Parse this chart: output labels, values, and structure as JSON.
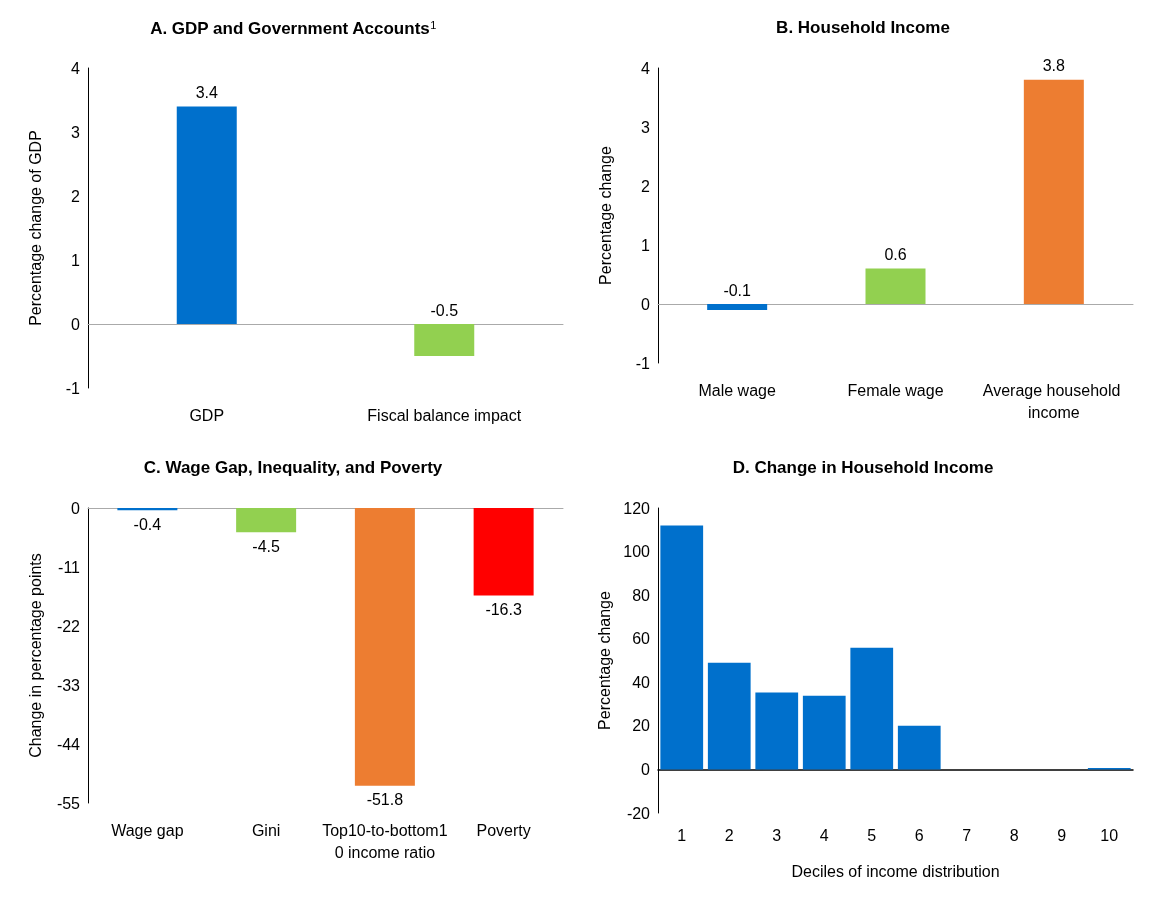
{
  "chart_data": [
    {
      "type": "bar",
      "title": "A. GDP and Government Accounts$^{1}$",
      "ylabel": "Percentage change of GDP",
      "categories": [
        "GDP",
        "Fiscal balance impact"
      ],
      "colors": [
        "#0070cc",
        "#92d050"
      ],
      "values": [
        3.4,
        -0.5
      ],
      "ylim": [
        -1,
        4
      ],
      "yticks": [
        -1,
        0,
        1,
        2,
        3,
        4
      ],
      "data_labels": true
    },
    {
      "type": "bar",
      "title": "B. Household Income",
      "ylabel": "Percentage change",
      "categories": [
        "Male wage",
        "Female wage",
        "Average household income"
      ],
      "colors": [
        "#0070cc",
        "#92d050",
        "#ed7d31"
      ],
      "values": [
        -0.1,
        0.6,
        3.8
      ],
      "ylim": [
        -1,
        4
      ],
      "yticks": [
        -1,
        0,
        1,
        2,
        3,
        4
      ],
      "data_labels": true
    },
    {
      "type": "bar",
      "title": "C. Wage Gap, Inequality, and Poverty",
      "ylabel": "Change in percentage points",
      "categories": [
        "Wage gap",
        "Gini",
        "Top10-to-bottom10 income ratio",
        "Poverty"
      ],
      "colors": [
        "#0070cc",
        "#92d050",
        "#ed7d31",
        "#ff0000"
      ],
      "values": [
        -0.4,
        -4.5,
        -51.8,
        -16.3
      ],
      "ylim": [
        -55,
        0
      ],
      "yticks": [
        -55,
        -44,
        -33,
        -22,
        -11,
        0
      ],
      "data_labels": true
    },
    {
      "type": "bar",
      "title": "D. Change in Household Income",
      "xlabel": "Deciles of income distribution",
      "ylabel": "Percentage change",
      "categories": [
        "1",
        "2",
        "3",
        "4",
        "5",
        "6",
        "7",
        "8",
        "9",
        "10"
      ],
      "color": "#0070cc",
      "values": [
        112,
        49,
        35.3,
        33.8,
        55.9,
        20.1,
        null,
        null,
        null,
        0.7
      ],
      "ylim": [
        -20,
        120
      ],
      "yticks": [
        -20,
        0,
        20,
        40,
        60,
        80,
        100,
        120
      ]
    }
  ]
}
